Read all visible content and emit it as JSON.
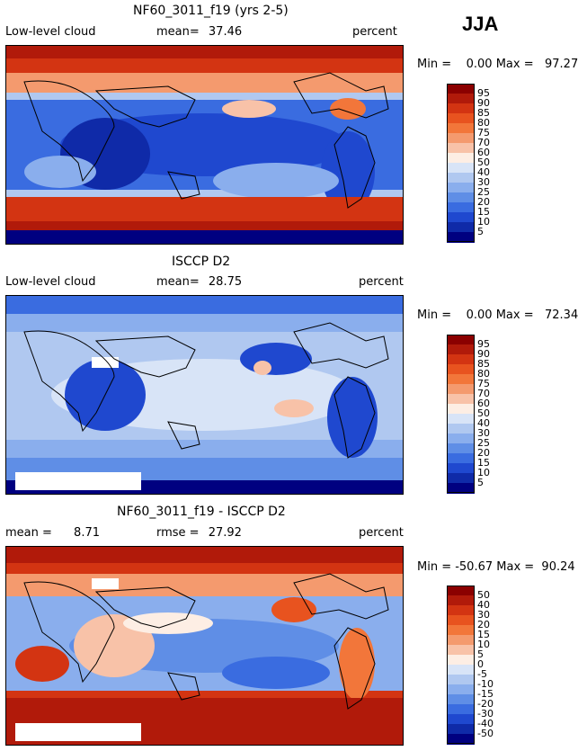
{
  "season": "JJA",
  "panels": [
    {
      "title": "NF60_3011_f19 (yrs 2-5)",
      "left_label": "Low-level cloud",
      "mid_label": "mean=",
      "mid_value": "37.46",
      "right_label": "percent",
      "minmax": "Min =    0.00 Max =   97.27",
      "colorbar_labels": [
        "95",
        "90",
        "85",
        "80",
        "75",
        "70",
        "60",
        "50",
        "40",
        "30",
        "25",
        "20",
        "15",
        "10",
        "5"
      ]
    },
    {
      "title": "ISCCP D2",
      "left_label": "Low-level cloud",
      "mid_label": "mean=",
      "mid_value": "28.75",
      "right_label": "percent",
      "minmax": "Min =    0.00 Max =   72.34",
      "colorbar_labels": [
        "95",
        "90",
        "85",
        "80",
        "75",
        "70",
        "60",
        "50",
        "40",
        "30",
        "25",
        "20",
        "15",
        "10",
        "5"
      ]
    },
    {
      "title": "NF60_3011_f19 - ISCCP D2",
      "left_label": "mean =",
      "left_value": "8.71",
      "mid_label": "rmse =",
      "mid_value": "27.92",
      "right_label": "percent",
      "minmax": "Min = -50.67 Max =  90.24",
      "colorbar_labels": [
        "50",
        "40",
        "30",
        "20",
        "15",
        "10",
        "5",
        "0",
        "-5",
        "-10",
        "-15",
        "-20",
        "-30",
        "-40",
        "-50"
      ]
    }
  ],
  "colors": {
    "scale": [
      "#8b0000",
      "#b11a0a",
      "#d33412",
      "#e8531f",
      "#f2763a",
      "#f49a6e",
      "#f8c2a8",
      "#fdeee4",
      "#d8e4f7",
      "#b0c8f0",
      "#8aaeed",
      "#5f8ee6",
      "#3a6ce0",
      "#1f48cf",
      "#0f2aa8",
      "#000080"
    ],
    "land_line": "#000000",
    "missing": "#ffffff"
  }
}
